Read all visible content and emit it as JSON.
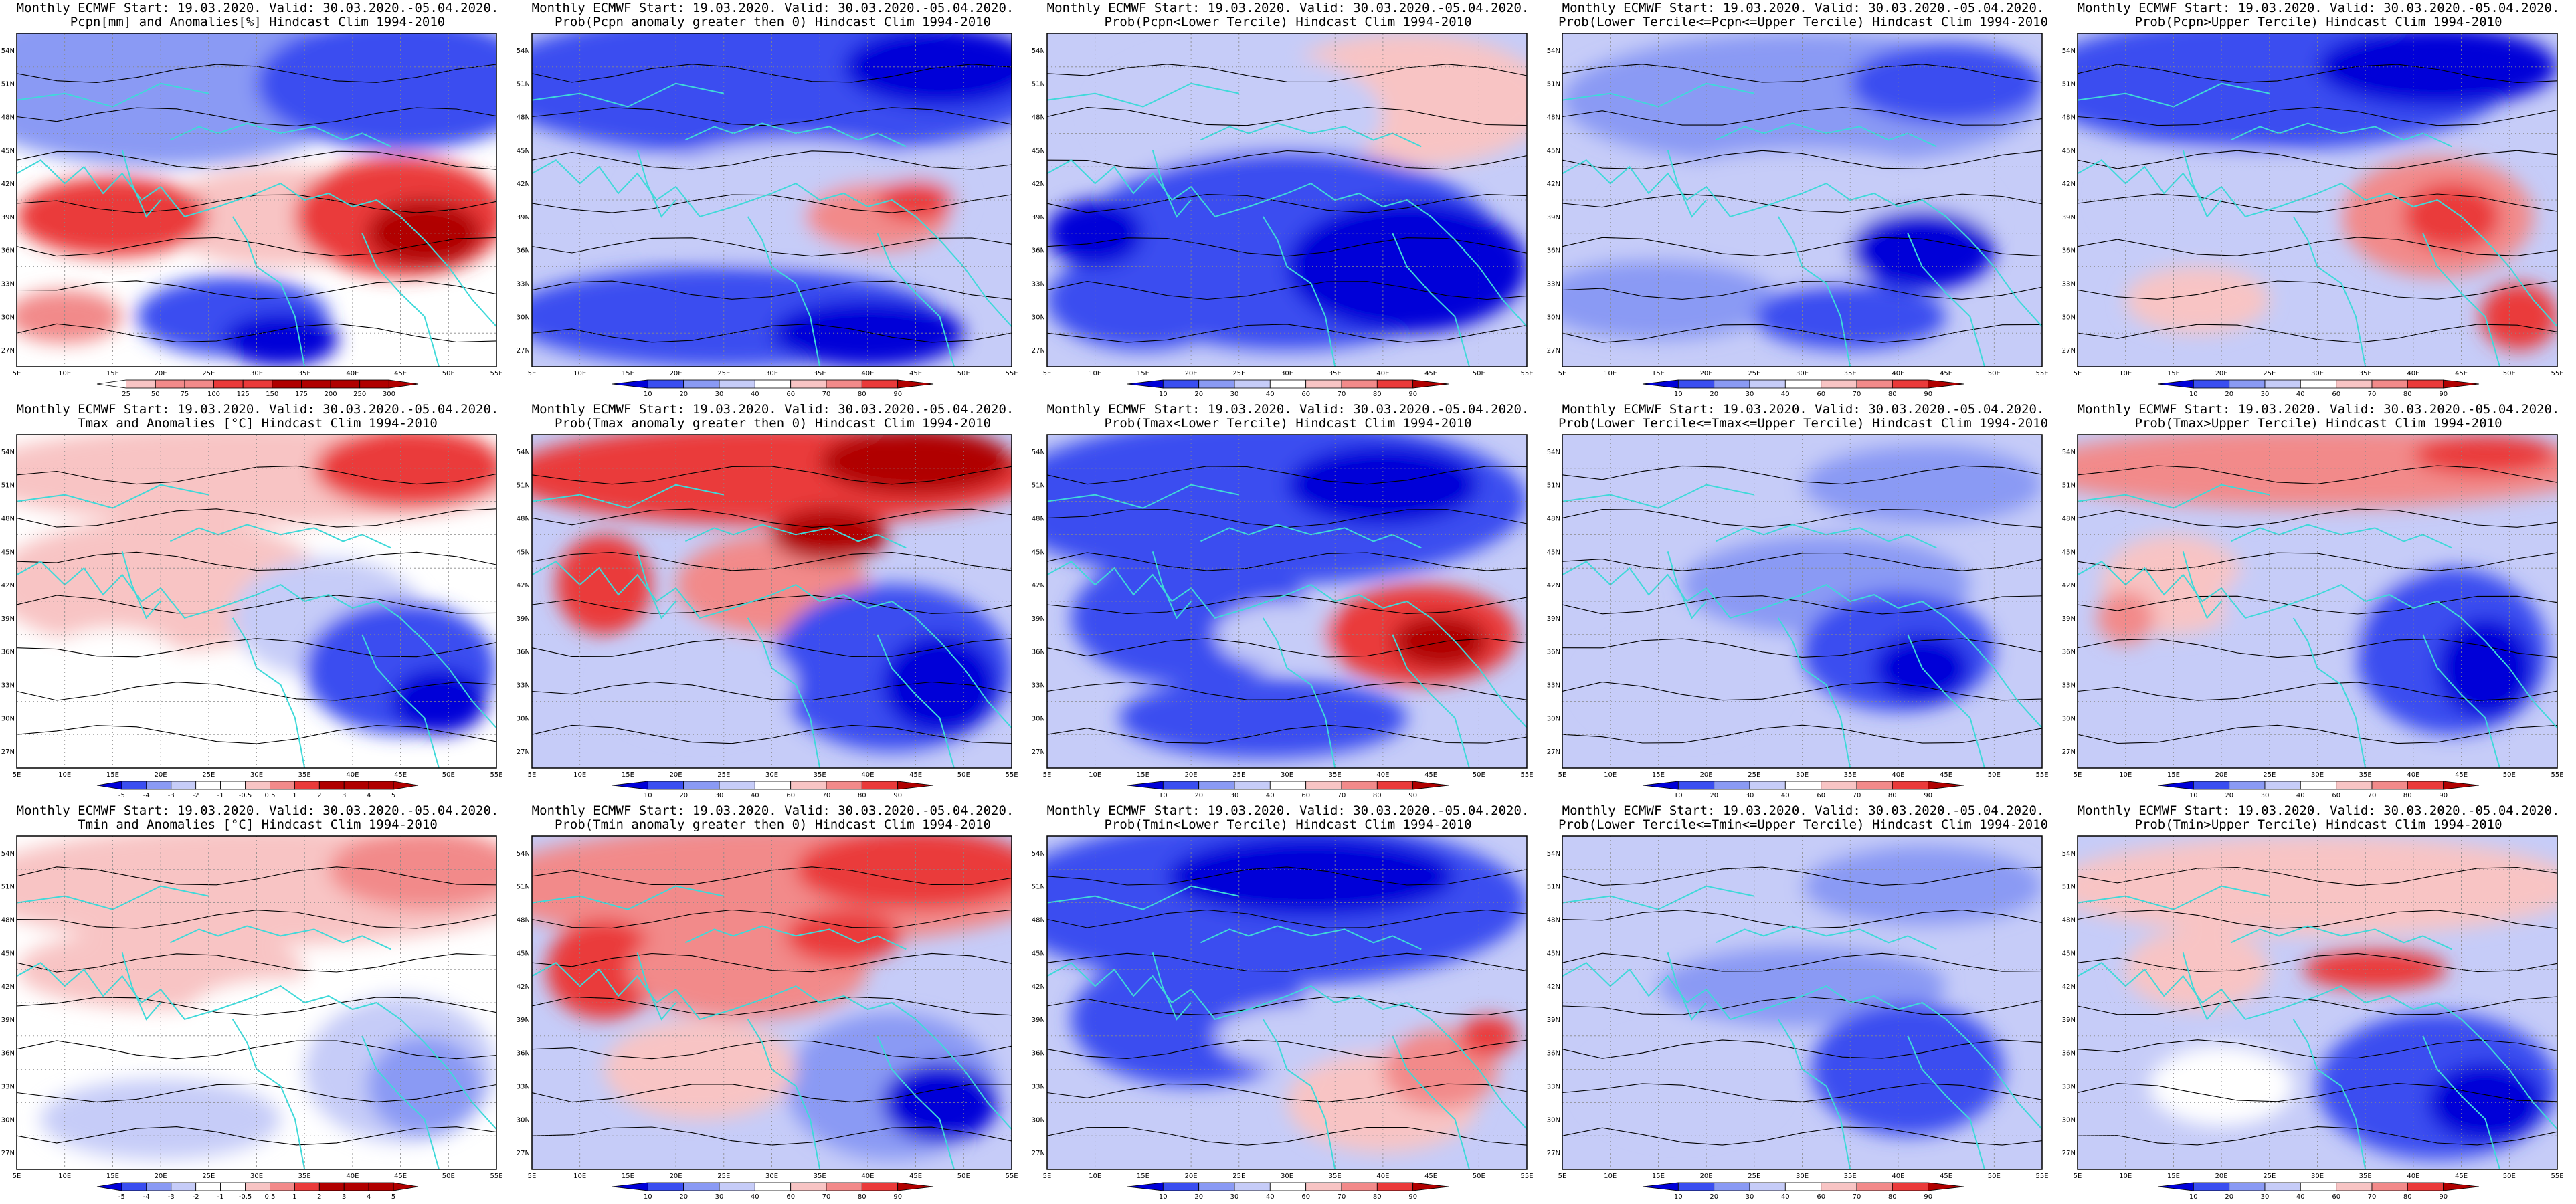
{
  "header_line": "Monthly ECMWF Start: 19.03.2020. Valid: 30.03.2020.-05.04.2020.",
  "lat_ticks": [
    "27N",
    "30N",
    "33N",
    "36N",
    "39N",
    "42N",
    "45N",
    "48N",
    "51N",
    "54N"
  ],
  "lon_ticks": [
    "5E",
    "10E",
    "15E",
    "20E",
    "25E",
    "30E",
    "35E",
    "40E",
    "45E",
    "50E",
    "55E"
  ],
  "colors": {
    "blue_dark": "#0000d8",
    "blue": "#3a4ef0",
    "blue_mid": "#8a9af4",
    "blue_light": "#c6ccf8",
    "white": "#ffffff",
    "red_light": "#f8c4c4",
    "red_mid": "#f28a8a",
    "red": "#ea3a3a",
    "red_dark": "#b00000",
    "coast": "#3fd9d9",
    "contour": "#000000"
  },
  "panels": [
    {
      "variable": "Pcpn",
      "kind": "anomaly",
      "title": "Pcpn[mm] and Anomalies[%] Hindcast Clim 1994-2010",
      "colorbar": [
        "25",
        "50",
        "75",
        "100",
        "125",
        "150",
        "175",
        "200",
        "250",
        "300"
      ]
    },
    {
      "variable": "Pcpn",
      "kind": "prob",
      "title": "Prob(Pcpn anomaly greater then 0) Hindcast Clim 1994-2010",
      "colorbar": [
        "10",
        "20",
        "30",
        "40",
        "60",
        "70",
        "80",
        "90"
      ]
    },
    {
      "variable": "Pcpn",
      "kind": "prob",
      "title": "Prob(Pcpn<Lower Tercile) Hindcast Clim 1994-2010",
      "colorbar": [
        "10",
        "20",
        "30",
        "40",
        "60",
        "70",
        "80",
        "90"
      ]
    },
    {
      "variable": "Pcpn",
      "kind": "prob",
      "title": "Prob(Lower Tercile<=Pcpn<=Upper Tercile) Hindcast Clim 1994-2010",
      "colorbar": [
        "10",
        "20",
        "30",
        "40",
        "60",
        "70",
        "80",
        "90"
      ]
    },
    {
      "variable": "Pcpn",
      "kind": "prob",
      "title": "Prob(Pcpn>Upper Tercile) Hindcast Clim 1994-2010",
      "colorbar": [
        "10",
        "20",
        "30",
        "40",
        "60",
        "70",
        "80",
        "90"
      ]
    },
    {
      "variable": "Tmax",
      "kind": "anomaly",
      "title": "Tmax and Anomalies [°C] Hindcast Clim 1994-2010",
      "colorbar": [
        "-5",
        "-4",
        "-3",
        "-2",
        "-1",
        "-0.5",
        "0.5",
        "1",
        "2",
        "3",
        "4",
        "5"
      ]
    },
    {
      "variable": "Tmax",
      "kind": "prob",
      "title": "Prob(Tmax anomaly greater then 0) Hindcast Clim 1994-2010",
      "colorbar": [
        "10",
        "20",
        "30",
        "40",
        "60",
        "70",
        "80",
        "90"
      ]
    },
    {
      "variable": "Tmax",
      "kind": "prob",
      "title": "Prob(Tmax<Lower Tercile) Hindcast Clim 1994-2010",
      "colorbar": [
        "10",
        "20",
        "30",
        "40",
        "60",
        "70",
        "80",
        "90"
      ]
    },
    {
      "variable": "Tmax",
      "kind": "prob",
      "title": "Prob(Lower Tercile<=Tmax<=Upper Tercile) Hindcast Clim 1994-2010",
      "colorbar": [
        "10",
        "20",
        "30",
        "40",
        "60",
        "70",
        "80",
        "90"
      ]
    },
    {
      "variable": "Tmax",
      "kind": "prob",
      "title": "Prob(Tmax>Upper Tercile) Hindcast Clim 1994-2010",
      "colorbar": [
        "10",
        "20",
        "30",
        "40",
        "60",
        "70",
        "80",
        "90"
      ]
    },
    {
      "variable": "Tmin",
      "kind": "anomaly",
      "title": "Tmin and Anomalies [°C] Hindcast Clim 1994-2010",
      "colorbar": [
        "-5",
        "-4",
        "-3",
        "-2",
        "-1",
        "-0.5",
        "0.5",
        "1",
        "2",
        "3",
        "4",
        "5"
      ]
    },
    {
      "variable": "Tmin",
      "kind": "prob",
      "title": "Prob(Tmin anomaly greater then 0) Hindcast Clim 1994-2010",
      "colorbar": [
        "10",
        "20",
        "30",
        "40",
        "60",
        "70",
        "80",
        "90"
      ]
    },
    {
      "variable": "Tmin",
      "kind": "prob",
      "title": "Prob(Tmin<Lower Tercile) Hindcast Clim 1994-2010",
      "colorbar": [
        "10",
        "20",
        "30",
        "40",
        "60",
        "70",
        "80",
        "90"
      ]
    },
    {
      "variable": "Tmin",
      "kind": "prob",
      "title": "Prob(Lower Tercile<=Tmin<=Upper Tercile) Hindcast Clim 1994-2010",
      "colorbar": [
        "10",
        "20",
        "30",
        "40",
        "60",
        "70",
        "80",
        "90"
      ]
    },
    {
      "variable": "Tmin",
      "kind": "prob",
      "title": "Prob(Tmin>Upper Tercile) Hindcast Clim 1994-2010",
      "colorbar": [
        "10",
        "20",
        "30",
        "40",
        "60",
        "70",
        "80",
        "90"
      ]
    }
  ]
}
